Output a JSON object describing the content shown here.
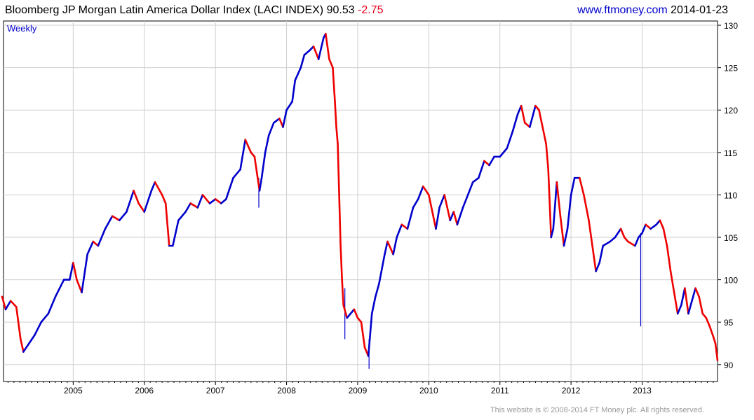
{
  "header": {
    "title": "Bloomberg JP Morgan Latin America Dollar Index (LACI INDEX)",
    "last": "90.53",
    "change": "-2.75",
    "site": "www.ftmoney.com",
    "date": "2014-01-23"
  },
  "footer": {
    "copyright": "This website is © 2008-2014 FT Money plc. All rights reserved."
  },
  "chart_data": {
    "type": "line",
    "title": "Bloomberg JP Morgan Latin America Dollar Index (LACI INDEX) 90.53 -2.75",
    "frequency": "Weekly",
    "x_ticks": [
      "2005",
      "2006",
      "2007",
      "2008",
      "2009",
      "2010",
      "2011",
      "2012",
      "2013"
    ],
    "y_ticks": [
      90,
      95,
      100,
      105,
      110,
      115,
      120,
      125,
      130
    ],
    "ylim": [
      88,
      130.5
    ],
    "xlim": [
      2004.02,
      2014.06
    ],
    "grid": true,
    "colors": {
      "up": "#0000cc",
      "down": "#ee0000",
      "grid": "#cfcfcf",
      "axis": "#000000"
    },
    "series": [
      {
        "name": "",
        "points": [
          [
            2004.0,
            98
          ],
          [
            2004.05,
            96.5
          ],
          [
            2004.12,
            97.5
          ],
          [
            2004.2,
            96.8
          ],
          [
            2004.26,
            93
          ],
          [
            2004.3,
            91.5
          ],
          [
            2004.38,
            92.5
          ],
          [
            2004.46,
            93.5
          ],
          [
            2004.55,
            95
          ],
          [
            2004.65,
            96
          ],
          [
            2004.75,
            98
          ],
          [
            2004.87,
            100
          ],
          [
            2004.95,
            100
          ],
          [
            2005.0,
            102
          ],
          [
            2005.05,
            100
          ],
          [
            2005.12,
            98.5
          ],
          [
            2005.2,
            103
          ],
          [
            2005.28,
            104.5
          ],
          [
            2005.35,
            104
          ],
          [
            2005.45,
            106
          ],
          [
            2005.55,
            107.5
          ],
          [
            2005.65,
            107
          ],
          [
            2005.75,
            108
          ],
          [
            2005.85,
            110.5
          ],
          [
            2005.92,
            109
          ],
          [
            2006.0,
            108
          ],
          [
            2006.1,
            110.5
          ],
          [
            2006.15,
            111.5
          ],
          [
            2006.25,
            110
          ],
          [
            2006.3,
            109
          ],
          [
            2006.35,
            104
          ],
          [
            2006.4,
            104
          ],
          [
            2006.48,
            107
          ],
          [
            2006.58,
            108
          ],
          [
            2006.65,
            109
          ],
          [
            2006.75,
            108.5
          ],
          [
            2006.82,
            110
          ],
          [
            2006.92,
            109
          ],
          [
            2007.0,
            109.5
          ],
          [
            2007.08,
            109
          ],
          [
            2007.15,
            109.5
          ],
          [
            2007.25,
            112
          ],
          [
            2007.35,
            113
          ],
          [
            2007.42,
            116.5
          ],
          [
            2007.5,
            115
          ],
          [
            2007.55,
            114.5
          ],
          [
            2007.62,
            110.5
          ],
          [
            2007.65,
            112
          ],
          [
            2007.7,
            115
          ],
          [
            2007.75,
            117
          ],
          [
            2007.82,
            118.5
          ],
          [
            2007.9,
            119
          ],
          [
            2007.95,
            118
          ],
          [
            2008.0,
            120
          ],
          [
            2008.08,
            121
          ],
          [
            2008.12,
            123.5
          ],
          [
            2008.2,
            125
          ],
          [
            2008.25,
            126.5
          ],
          [
            2008.32,
            127
          ],
          [
            2008.38,
            127.5
          ],
          [
            2008.45,
            126
          ],
          [
            2008.52,
            128.5
          ],
          [
            2008.55,
            129
          ],
          [
            2008.6,
            126
          ],
          [
            2008.65,
            125
          ],
          [
            2008.68,
            121
          ],
          [
            2008.7,
            118
          ],
          [
            2008.72,
            116
          ],
          [
            2008.74,
            110
          ],
          [
            2008.76,
            104
          ],
          [
            2008.78,
            100
          ],
          [
            2008.8,
            97
          ],
          [
            2008.85,
            95.5
          ],
          [
            2008.9,
            96
          ],
          [
            2008.95,
            96.5
          ],
          [
            2009.0,
            95.5
          ],
          [
            2009.05,
            95
          ],
          [
            2009.1,
            92
          ],
          [
            2009.15,
            91
          ],
          [
            2009.2,
            96
          ],
          [
            2009.25,
            98
          ],
          [
            2009.3,
            99.5
          ],
          [
            2009.38,
            103
          ],
          [
            2009.42,
            104.5
          ],
          [
            2009.5,
            103
          ],
          [
            2009.55,
            105
          ],
          [
            2009.62,
            106.5
          ],
          [
            2009.7,
            106
          ],
          [
            2009.78,
            108.5
          ],
          [
            2009.85,
            109.5
          ],
          [
            2009.92,
            111
          ],
          [
            2010.0,
            110
          ],
          [
            2010.05,
            108
          ],
          [
            2010.1,
            106
          ],
          [
            2010.15,
            108.5
          ],
          [
            2010.22,
            110
          ],
          [
            2010.3,
            107
          ],
          [
            2010.35,
            108
          ],
          [
            2010.4,
            106.5
          ],
          [
            2010.48,
            108.5
          ],
          [
            2010.55,
            110
          ],
          [
            2010.62,
            111.5
          ],
          [
            2010.7,
            112
          ],
          [
            2010.78,
            114
          ],
          [
            2010.85,
            113.5
          ],
          [
            2010.92,
            114.5
          ],
          [
            2011.0,
            114.5
          ],
          [
            2011.05,
            115
          ],
          [
            2011.1,
            115.5
          ],
          [
            2011.18,
            117.5
          ],
          [
            2011.25,
            119.5
          ],
          [
            2011.3,
            120.5
          ],
          [
            2011.35,
            118.5
          ],
          [
            2011.42,
            118
          ],
          [
            2011.5,
            120.5
          ],
          [
            2011.55,
            120
          ],
          [
            2011.6,
            118
          ],
          [
            2011.65,
            116
          ],
          [
            2011.68,
            113
          ],
          [
            2011.7,
            109
          ],
          [
            2011.72,
            105
          ],
          [
            2011.75,
            106
          ],
          [
            2011.8,
            111.5
          ],
          [
            2011.85,
            107.5
          ],
          [
            2011.9,
            104
          ],
          [
            2011.95,
            106
          ],
          [
            2012.0,
            110
          ],
          [
            2012.05,
            112
          ],
          [
            2012.12,
            112
          ],
          [
            2012.18,
            110
          ],
          [
            2012.25,
            107
          ],
          [
            2012.3,
            104
          ],
          [
            2012.35,
            101
          ],
          [
            2012.4,
            102
          ],
          [
            2012.45,
            104
          ],
          [
            2012.55,
            104.5
          ],
          [
            2012.62,
            105
          ],
          [
            2012.7,
            106
          ],
          [
            2012.75,
            105
          ],
          [
            2012.8,
            104.5
          ],
          [
            2012.9,
            104
          ],
          [
            2012.95,
            105
          ],
          [
            2013.0,
            105.5
          ],
          [
            2013.05,
            106.5
          ],
          [
            2013.12,
            106
          ],
          [
            2013.2,
            106.5
          ],
          [
            2013.25,
            107
          ],
          [
            2013.3,
            106
          ],
          [
            2013.35,
            104
          ],
          [
            2013.4,
            101
          ],
          [
            2013.45,
            98.5
          ],
          [
            2013.5,
            96
          ],
          [
            2013.55,
            97
          ],
          [
            2013.6,
            99
          ],
          [
            2013.65,
            96
          ],
          [
            2013.7,
            97.5
          ],
          [
            2013.75,
            99
          ],
          [
            2013.8,
            98
          ],
          [
            2013.85,
            96
          ],
          [
            2013.9,
            95.5
          ],
          [
            2013.95,
            94.5
          ],
          [
            2014.0,
            93.3
          ],
          [
            2014.03,
            92.5
          ],
          [
            2014.06,
            90.5
          ]
        ]
      }
    ],
    "spikes": [
      {
        "x": 2007.61,
        "low": 108.5,
        "high": 112
      },
      {
        "x": 2008.82,
        "low": 93,
        "high": 99
      },
      {
        "x": 2009.16,
        "low": 89.5,
        "high": 93
      },
      {
        "x": 2012.98,
        "low": 94.5,
        "high": 105.5
      }
    ]
  }
}
